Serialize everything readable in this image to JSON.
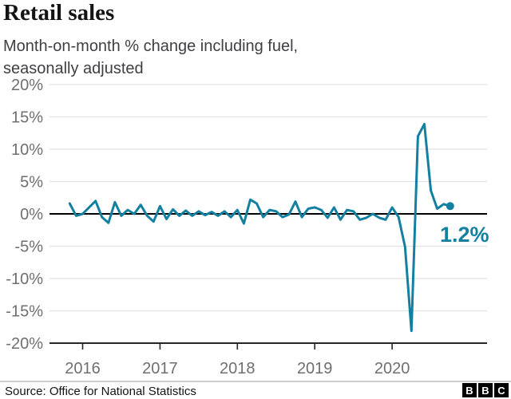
{
  "header": {
    "title": "Retail sales",
    "subtitle_line1": "Month-on-month % change including fuel,",
    "subtitle_line2": "seasonally adjusted"
  },
  "chart_data": {
    "type": "line",
    "title": "Retail sales",
    "subtitle": "Month-on-month % change including fuel, seasonally adjusted",
    "x_start_month": "2015-11",
    "x_interval": "monthly",
    "x_tick_labels": [
      "2016",
      "2017",
      "2018",
      "2019",
      "2020"
    ],
    "y_ticks": [
      20,
      15,
      10,
      5,
      0,
      -5,
      -10,
      -15,
      -20
    ],
    "y_tick_suffix": "%",
    "ylim": [
      -20,
      20
    ],
    "grid": true,
    "zero_baseline": true,
    "legend": "none",
    "line_color": "#1380A1",
    "values": [
      1.6,
      -0.3,
      0.0,
      1.0,
      2.0,
      -0.5,
      -1.4,
      1.8,
      -0.3,
      0.6,
      0.0,
      1.4,
      -0.3,
      -1.2,
      1.2,
      -0.8,
      0.7,
      -0.3,
      0.5,
      -0.3,
      0.4,
      -0.2,
      0.3,
      -0.3,
      0.4,
      -0.5,
      0.6,
      -1.5,
      2.2,
      1.6,
      -0.5,
      0.6,
      0.4,
      -0.5,
      -0.1,
      1.9,
      -0.5,
      0.8,
      1.0,
      0.6,
      -0.6,
      1.0,
      -0.9,
      0.6,
      0.4,
      -0.9,
      -0.6,
      0.0,
      -0.6,
      -0.9,
      1.0,
      -0.5,
      -5.1,
      -18.1,
      12.0,
      13.9,
      3.6,
      0.8,
      1.5,
      1.2
    ],
    "end_value": 1.2,
    "end_label": "1.2%"
  },
  "footer": {
    "source": "Source: Office for National Statistics",
    "logo_letters": [
      "B",
      "B",
      "C"
    ]
  },
  "colors": {
    "line": "#1380A1",
    "annotation": "#1380A1",
    "gridline": "#e2e2e2",
    "zero_line": "#000000",
    "axis": "#262626",
    "axis_label": "#6f6f6f",
    "title": "#141414",
    "subtitle": "#3f3f42",
    "divider": "#cccccc",
    "background": "#ffffff",
    "logo_bg": "#000000",
    "logo_text": "#ffffff"
  }
}
